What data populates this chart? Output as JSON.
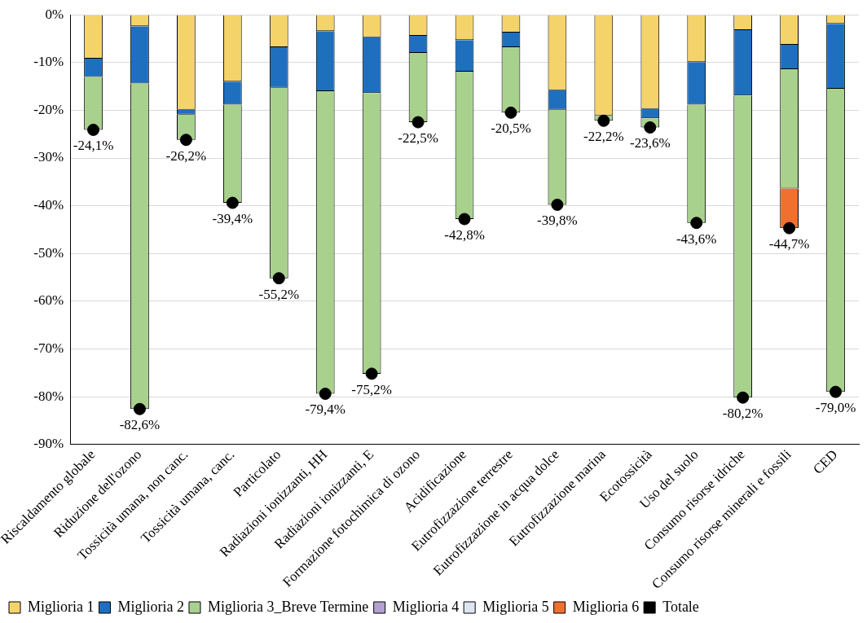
{
  "chart_data": {
    "type": "bar",
    "stacked": true,
    "categories": [
      "Riscaldamento globale",
      "Riduzione dell'ozono",
      "Tossicità umana, non canc.",
      "Tossicità umana, canc.",
      "Particolato",
      "Radiazioni ionizzanti, HH",
      "Radiazioni ionizzanti, E",
      "Formazione fotochimica di ozono",
      "Acidificazione",
      "Eutrofizzazione terrestre",
      "Eutrofizzazione in acqua dolce",
      "Eutrofizzazione marina",
      "Ecotossicità",
      "Uso del suolo",
      "Consumo risorse idriche",
      "Consumo risorse minerali e fossili",
      "CED"
    ],
    "series": [
      {
        "name": "Miglioria 1",
        "color": "#f5d36b",
        "values": [
          -9.2,
          -2.4,
          -19.9,
          -14.0,
          -6.8,
          -3.4,
          -4.7,
          -4.4,
          -5.3,
          -3.7,
          -15.8,
          -21.1,
          -19.7,
          -9.9,
          -3.2,
          -6.3,
          -1.9
        ]
      },
      {
        "name": "Miglioria 2",
        "color": "#1f6fbf",
        "values": [
          -3.8,
          -12.0,
          -1.0,
          -4.8,
          -8.5,
          -12.6,
          -11.7,
          -3.6,
          -6.6,
          -3.1,
          -4.1,
          null,
          -2.0,
          -8.9,
          -13.7,
          -5.1,
          -13.6
        ]
      },
      {
        "name": "Miglioria 3_Breve Termine",
        "color": "#a9d18e",
        "values": [
          -11.1,
          -68.2,
          -5.3,
          -20.6,
          -39.9,
          -63.4,
          -58.8,
          -14.5,
          -30.9,
          -13.7,
          -19.9,
          -1.1,
          -1.9,
          -24.8,
          -63.3,
          -25.0,
          -63.5
        ]
      },
      {
        "name": "Miglioria 4",
        "color": "#b4a0d0",
        "values": [
          null,
          null,
          null,
          null,
          null,
          null,
          null,
          null,
          null,
          null,
          null,
          null,
          null,
          null,
          null,
          null,
          null
        ]
      },
      {
        "name": "Miglioria 5",
        "color": "#dde6f0",
        "values": [
          null,
          null,
          null,
          null,
          null,
          null,
          null,
          null,
          null,
          null,
          null,
          null,
          null,
          null,
          null,
          null,
          null
        ]
      },
      {
        "name": "Miglioria 6",
        "color": "#f07030",
        "values": [
          null,
          null,
          null,
          null,
          null,
          null,
          null,
          null,
          null,
          null,
          null,
          null,
          null,
          null,
          null,
          -8.3,
          null
        ]
      },
      {
        "name": "Totale",
        "type": "scatter",
        "color": "#000000",
        "marker": "circle",
        "x": [
          "Riscaldamento globale",
          "Riduzione dell'ozono",
          "Tossicità umana, non canc.",
          "Tossicità umana, canc.",
          "Particolato",
          "Radiazioni ionizzanti, HH",
          "Radiazioni ionizzanti, E",
          "Formazione fotochimica di ozono",
          "Acidificazione",
          "Eutrofizzazione terrestre",
          "Eutrofizzazione in acqua dolce",
          "Eutrofizzazione marina",
          "Ecotossicità",
          "Uso del suolo",
          "Consumo risorse idriche",
          "Consumo risorse minerali e fossili",
          "CED"
        ],
        "values": [
          -24.1,
          -82.6,
          -26.2,
          -39.4,
          -55.2,
          -79.4,
          -75.2,
          -22.5,
          -42.8,
          -20.5,
          -39.8,
          -22.2,
          -23.6,
          -43.6,
          -80.2,
          -44.7,
          -79.0
        ],
        "value_labels": [
          "-24,1%",
          "-82,6%",
          "-26,2%",
          "-39,4%",
          "-55,2%",
          "-79,4%",
          "-75,2%",
          "-22,5%",
          "-42,8%",
          "-20,5%",
          "-39,8%",
          "-22,2%",
          "-23,6%",
          "-43,6%",
          "-80,2%",
          "-44,7%",
          "-79,0%"
        ]
      }
    ],
    "ylim": [
      -90,
      0
    ],
    "yticks": [
      {
        "value": -90,
        "label": "-90%"
      },
      {
        "value": -80,
        "label": "-80%"
      },
      {
        "value": -70,
        "label": "-70%"
      },
      {
        "value": -60,
        "label": "-60%"
      },
      {
        "value": -50,
        "label": "-50%"
      },
      {
        "value": -40,
        "label": "-40%"
      },
      {
        "value": -30,
        "label": "-30%"
      },
      {
        "value": -20,
        "label": "-20%"
      },
      {
        "value": -10,
        "label": "-10%"
      },
      {
        "value": 0,
        "label": "0%"
      }
    ],
    "grid": "y",
    "legend": "bottom"
  }
}
